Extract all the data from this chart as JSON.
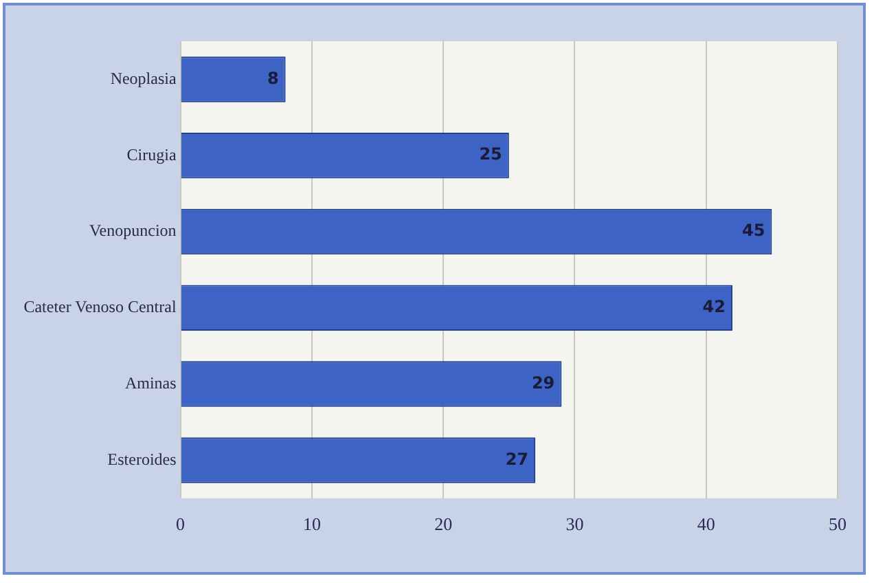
{
  "chart_data": {
    "type": "bar",
    "orientation": "horizontal",
    "categories": [
      "Neoplasia",
      "Cirugia",
      "Venopuncion",
      "Cateter Venoso Central",
      "Aminas",
      "Esteroides"
    ],
    "values": [
      8,
      25,
      45,
      42,
      29,
      27
    ],
    "color": "#3d63c4",
    "xlim": [
      0,
      50
    ],
    "xticks": [
      0,
      10,
      20,
      30,
      40,
      50
    ],
    "grid": "x",
    "data_labels": true,
    "legend": false
  }
}
